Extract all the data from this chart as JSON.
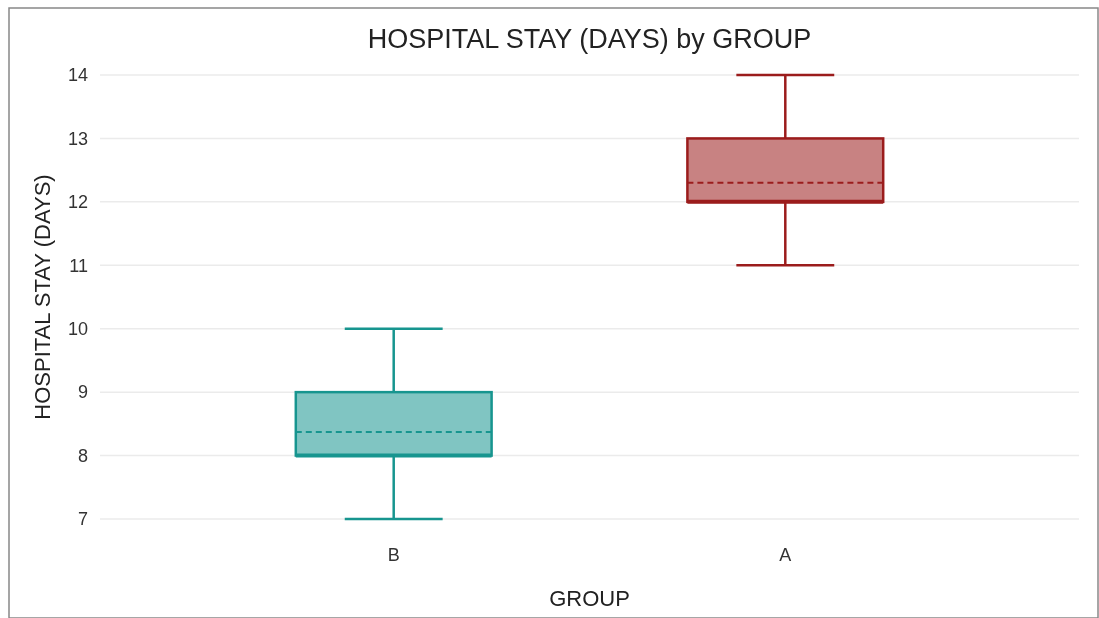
{
  "chart_data": {
    "type": "box",
    "title": "HOSPITAL STAY (DAYS) by GROUP",
    "xlabel": "GROUP",
    "ylabel": "HOSPITAL STAY (DAYS)",
    "categories": [
      "B",
      "A"
    ],
    "boxes": [
      {
        "low": 7,
        "q1": 8,
        "median": 8,
        "q3": 9,
        "high": 10,
        "mean": 8.37
      },
      {
        "low": 11,
        "q1": 12,
        "median": 12,
        "q3": 13,
        "high": 14,
        "mean": 12.3
      }
    ],
    "colors": [
      "#17958f",
      "#9b1c1c"
    ],
    "ylim": [
      7,
      14
    ],
    "yticks": [
      7,
      8,
      9,
      10,
      11,
      12,
      13,
      14
    ],
    "grid": "y"
  }
}
